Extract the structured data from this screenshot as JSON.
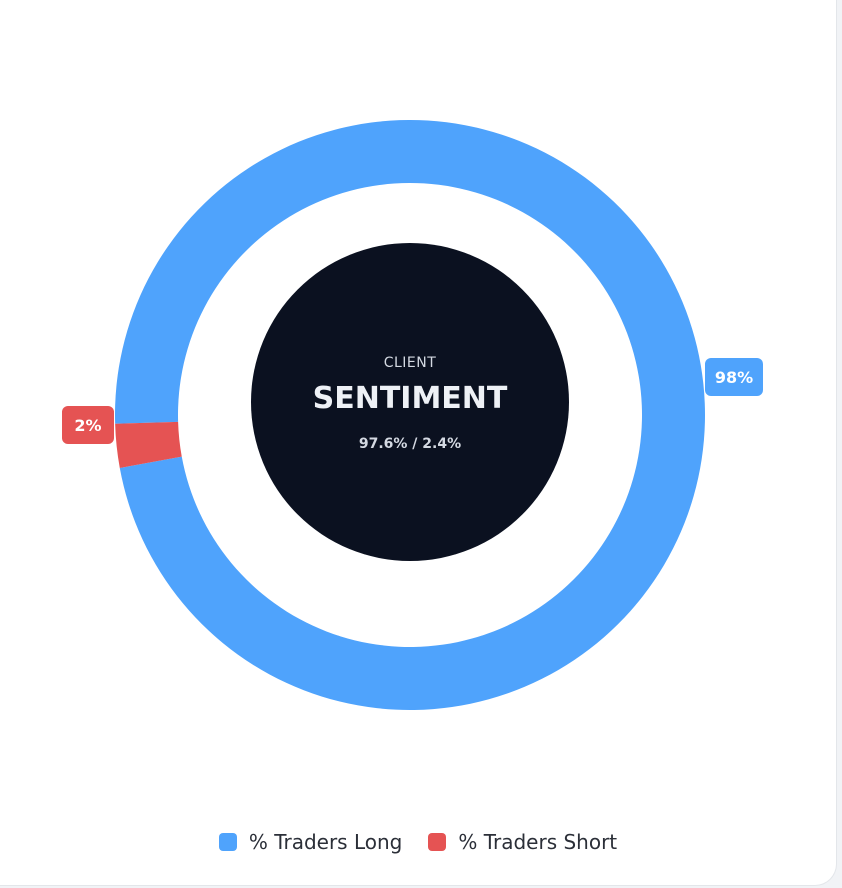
{
  "chart_data": {
    "type": "pie",
    "variant": "donut",
    "categories": [
      "% Traders Long",
      "% Traders Short"
    ],
    "values": [
      97.6,
      2.4
    ],
    "data_labels": [
      "98%",
      "2%"
    ],
    "colors": [
      "#4fa3fc",
      "#e55353"
    ],
    "legend_placement": "bottom",
    "center": {
      "subtitle": "CLIENT",
      "title": "SENTIMENT",
      "ratio": "97.6% / 2.4%"
    }
  }
}
